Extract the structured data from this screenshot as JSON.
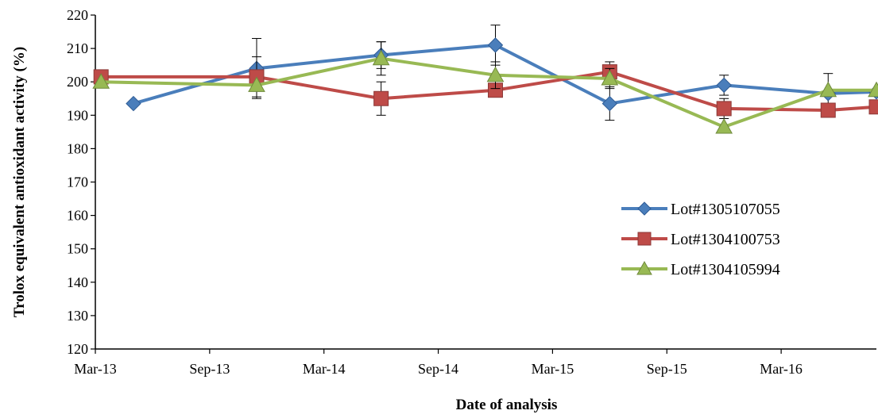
{
  "chart_data": {
    "type": "line",
    "xlabel": "Date of analysis",
    "ylabel": "Trolox equivalent antioxidant activity (%)",
    "x_ticks": [
      "Mar-13",
      "Sep-13",
      "Mar-14",
      "Sep-14",
      "Mar-15",
      "Sep-15",
      "Mar-16"
    ],
    "x_range": [
      "2013-03-01",
      "2016-08-01"
    ],
    "ylim": [
      120,
      220
    ],
    "y_ticks": [
      120,
      130,
      140,
      150,
      160,
      170,
      180,
      190,
      200,
      210,
      220
    ],
    "grid": false,
    "legend_position": "right",
    "series": [
      {
        "name": "Lot#1305107055",
        "color": "#4a7ebb",
        "marker": "diamond",
        "points": [
          {
            "x": "2013-05-01",
            "y": 193.5
          },
          {
            "x": "2013-11-15",
            "y": 204.0,
            "err": 9
          },
          {
            "x": "2014-06-01",
            "y": 208.0,
            "err": 4
          },
          {
            "x": "2014-12-01",
            "y": 211.0,
            "err": 6
          },
          {
            "x": "2015-06-01",
            "y": 193.5,
            "err": 5
          },
          {
            "x": "2015-12-01",
            "y": 199.0,
            "err": 3
          },
          {
            "x": "2016-05-15",
            "y": 196.5,
            "err": 6
          },
          {
            "x": "2016-08-01",
            "y": 197.0
          }
        ]
      },
      {
        "name": "Lot#1304100753",
        "color": "#be4b48",
        "marker": "square",
        "points": [
          {
            "x": "2013-03-10",
            "y": 201.5
          },
          {
            "x": "2013-11-15",
            "y": 201.5,
            "err": 6
          },
          {
            "x": "2014-06-01",
            "y": 195.0,
            "err": 5
          },
          {
            "x": "2014-12-01",
            "y": 197.5
          },
          {
            "x": "2015-06-01",
            "y": 203.0,
            "err": 3
          },
          {
            "x": "2015-12-01",
            "y": 192.0,
            "err": 3
          },
          {
            "x": "2016-05-15",
            "y": 191.5
          },
          {
            "x": "2016-08-01",
            "y": 192.5
          }
        ]
      },
      {
        "name": "Lot#1304105994",
        "color": "#98b954",
        "marker": "triangle",
        "points": [
          {
            "x": "2013-03-10",
            "y": 200.0
          },
          {
            "x": "2013-11-15",
            "y": 199.0
          },
          {
            "x": "2014-06-01",
            "y": 207.0,
            "err": 5
          },
          {
            "x": "2014-12-01",
            "y": 202.0,
            "err": 4
          },
          {
            "x": "2015-06-01",
            "y": 201.0,
            "err": 3
          },
          {
            "x": "2015-12-01",
            "y": 186.5
          },
          {
            "x": "2016-05-15",
            "y": 197.5
          },
          {
            "x": "2016-08-01",
            "y": 197.5
          }
        ]
      }
    ]
  }
}
